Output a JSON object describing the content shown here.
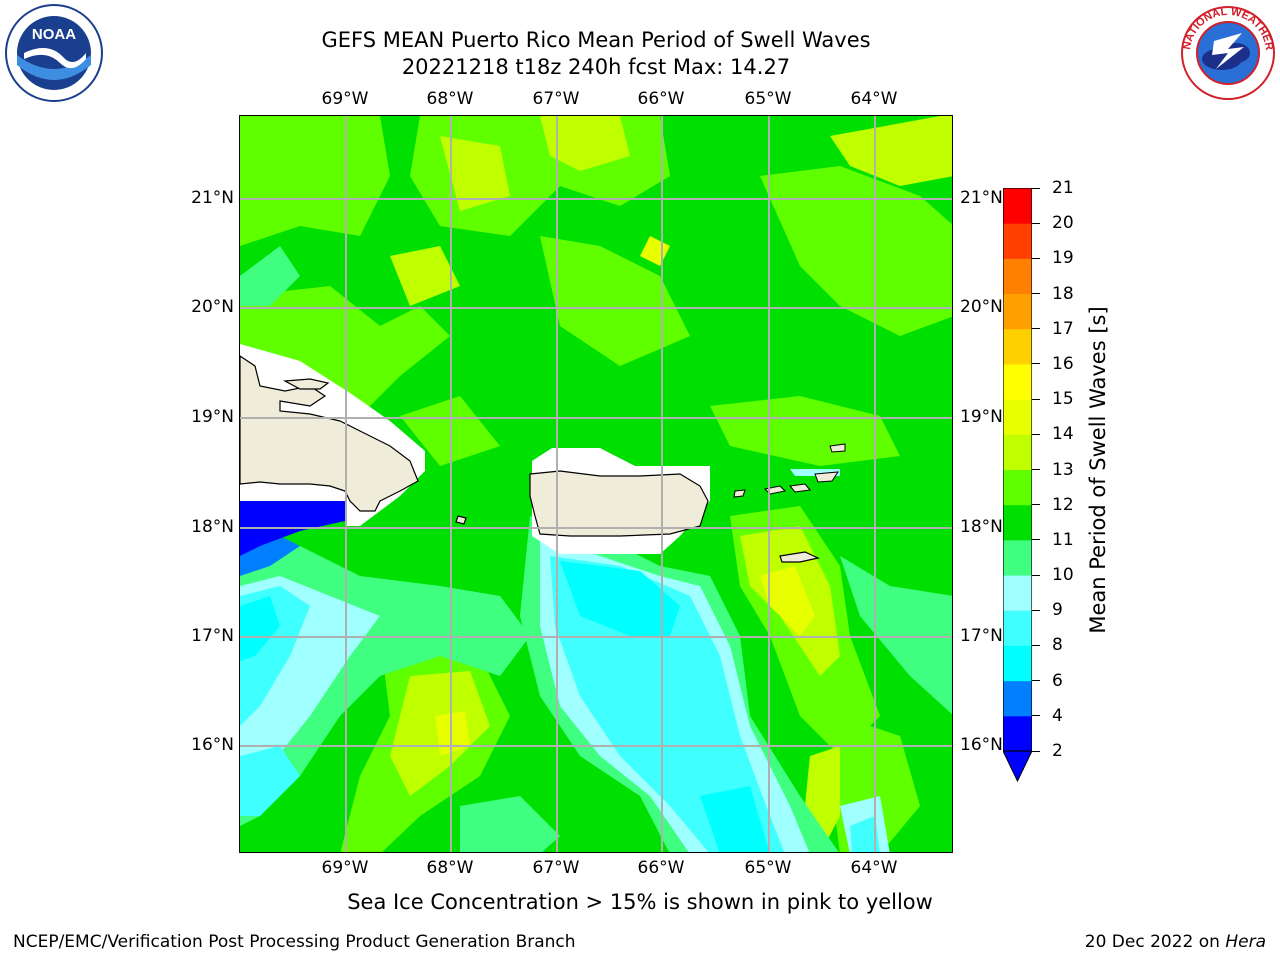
{
  "title": {
    "line1": "GEFS MEAN Puerto Rico Mean Period of Swell Waves",
    "line2": "20221218 t18z 240h fcst   Max: 14.27"
  },
  "longitude_labels": [
    "69°W",
    "68°W",
    "67°W",
    "66°W",
    "65°W",
    "64°W"
  ],
  "latitude_labels": [
    "21°N",
    "20°N",
    "19°N",
    "18°N",
    "17°N",
    "16°N"
  ],
  "map_extent": {
    "lon_min": -70.0,
    "lon_max": -63.27,
    "lat_min": 15.0,
    "lat_max": 21.75
  },
  "colorbar": {
    "label": "Mean Period of Swell Waves [s]",
    "ticks": [
      "2",
      "4",
      "6",
      "8",
      "9",
      "10",
      "11",
      "12",
      "13",
      "14",
      "15",
      "16",
      "17",
      "18",
      "19",
      "20",
      "21"
    ],
    "colors": [
      "#0000ff",
      "#0080ff",
      "#00ffff",
      "#40ffff",
      "#a0ffff",
      "#40ff80",
      "#00e000",
      "#60ff00",
      "#c0ff00",
      "#e8ff00",
      "#ffff00",
      "#ffd000",
      "#ffa000",
      "#ff8000",
      "#ff4000",
      "#ff0000"
    ],
    "extend_low_color": "#0000ff"
  },
  "sea_ice_note": "Sea Ice Concentration > 15% is shown in pink to yellow",
  "credit": "NCEP/EMC/Verification Post Processing Product Generation Branch",
  "date_note": {
    "text": "20 Dec 2022 on ",
    "host": "Hera"
  },
  "logos": {
    "left": "NOAA",
    "right": "NATIONAL WEATHER SERVICE"
  },
  "colors": {
    "land": "#efedda",
    "grid": "#b0b0b0",
    "coast": "#000000"
  }
}
